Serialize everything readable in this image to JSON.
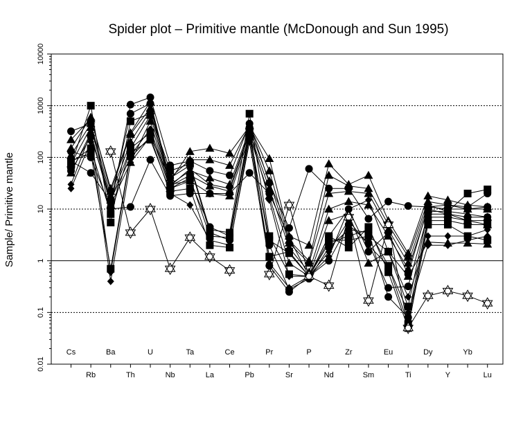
{
  "chart_data": {
    "type": "line",
    "title": "Spider plot – Primitive mantle (McDonough  and  Sun 1995)",
    "ylabel": "Sample/ Primitive mantle",
    "xlabel": "",
    "y_scale": "log",
    "ylim": [
      0.01,
      10000
    ],
    "y_ticks": [
      "0.01",
      "0.1",
      "1",
      "10",
      "100",
      "1000",
      "10000"
    ],
    "grid": "dotted horizontal at each decade; solid line at 1",
    "legend": "none",
    "categories": [
      "Cs",
      "Rb",
      "Ba",
      "Th",
      "U",
      "Nb",
      "Ta",
      "La",
      "Ce",
      "Pb",
      "Pr",
      "Sr",
      "P",
      "Nd",
      "Zr",
      "Sm",
      "Eu",
      "Ti",
      "Dy",
      "Y",
      "Yb",
      "Lu"
    ],
    "series": [
      {
        "marker": "triangle",
        "values": [
          220,
          560,
          25,
          300,
          1200,
          35,
          130,
          150,
          120,
          400,
          95,
          3,
          2,
          75,
          30,
          45,
          6,
          1.4,
          18,
          15,
          12,
          11
        ]
      },
      {
        "marker": "triangle",
        "values": [
          150,
          600,
          22,
          280,
          900,
          40,
          90,
          90,
          70,
          420,
          55,
          2.5,
          1,
          45,
          28,
          25,
          5,
          1.2,
          14,
          12,
          10,
          10
        ]
      },
      {
        "marker": "triangle",
        "values": [
          110,
          450,
          18,
          200,
          800,
          30,
          55,
          40,
          30,
          350,
          35,
          2.2,
          0.9,
          20,
          22,
          20,
          4,
          0.9,
          12,
          9,
          8,
          7
        ]
      },
      {
        "marker": "triangle",
        "values": [
          75,
          380,
          15,
          150,
          650,
          28,
          45,
          28,
          22,
          300,
          25,
          1.8,
          0.6,
          10,
          14,
          12,
          3,
          0.7,
          10,
          8,
          6,
          5
        ]
      },
      {
        "marker": "triangle",
        "values": [
          50,
          300,
          12,
          80,
          500,
          25,
          35,
          20,
          18,
          260,
          18,
          0.9,
          0.5,
          6,
          8,
          0.9,
          1.5,
          0.5,
          2.3,
          2.2,
          2.2,
          2.1
        ]
      },
      {
        "marker": "circle",
        "values": [
          320,
          450,
          11,
          1050,
          1450,
          70,
          85,
          55,
          45,
          450,
          32,
          4.3,
          60,
          25,
          25,
          6.5,
          14,
          11.5,
          11,
          12,
          11,
          20
        ]
      },
      {
        "marker": "circle",
        "values": [
          130,
          100,
          10,
          11,
          90,
          18,
          20,
          20,
          20,
          50,
          20,
          2.8,
          0.5,
          3,
          10,
          1.5,
          3.5,
          0.55,
          11,
          10,
          10,
          11
        ]
      },
      {
        "marker": "circle",
        "values": [
          85,
          50,
          14,
          700,
          1100,
          30,
          35,
          4.5,
          3,
          380,
          0.8,
          0.25,
          0.5,
          1,
          5,
          2.2,
          0.3,
          0.32,
          8,
          8,
          7,
          7
        ]
      },
      {
        "marker": "circle",
        "values": [
          55,
          250,
          15,
          100,
          250,
          40,
          70,
          3.5,
          2.5,
          330,
          2,
          0.28,
          0.45,
          1.8,
          4,
          3.5,
          0.2,
          0.08,
          7,
          7,
          6,
          6
        ]
      },
      {
        "marker": "square",
        "values": [
          70,
          1000,
          5.5,
          500,
          700,
          55,
          75,
          4,
          3.5,
          700,
          3,
          0.55,
          0.5,
          2.5,
          2.5,
          3,
          1.5,
          0.13,
          9,
          9,
          20,
          24
        ]
      },
      {
        "marker": "square",
        "values": [
          80,
          150,
          8,
          150,
          300,
          25,
          40,
          3,
          2.8,
          280,
          2.5,
          1.4,
          0.5,
          2.2,
          3,
          4,
          0.8,
          0.06,
          6,
          6,
          5,
          5
        ]
      },
      {
        "marker": "square",
        "values": [
          85,
          120,
          0.7,
          120,
          220,
          22,
          25,
          2,
          1.8,
          250,
          1.2,
          1.5,
          0.5,
          3,
          1.8,
          4.5,
          0.6,
          0.05,
          5,
          5,
          3,
          2.5
        ]
      },
      {
        "marker": "diamond",
        "values": [
          25,
          200,
          0.4,
          80,
          250,
          20,
          12,
          2.5,
          2,
          200,
          0.9,
          0.3,
          0.5,
          1.5,
          6,
          2,
          0.8,
          0.1,
          2,
          2,
          2.5,
          3
        ]
      },
      {
        "marker": "diamond",
        "values": [
          30,
          300,
          0.6,
          110,
          350,
          28,
          60,
          30,
          25,
          320,
          15,
          0.5,
          0.5,
          1.2,
          10,
          15,
          1.5,
          0.2,
          3,
          3,
          3,
          4
        ]
      },
      {
        "marker": "star",
        "values": [
          null,
          null,
          130,
          3.5,
          10,
          0.7,
          2.8,
          1.2,
          0.65,
          null,
          0.55,
          12,
          0.5,
          0.33,
          7,
          0.17,
          5,
          0.05,
          0.21,
          0.26,
          0.21,
          0.15
        ]
      }
    ]
  }
}
